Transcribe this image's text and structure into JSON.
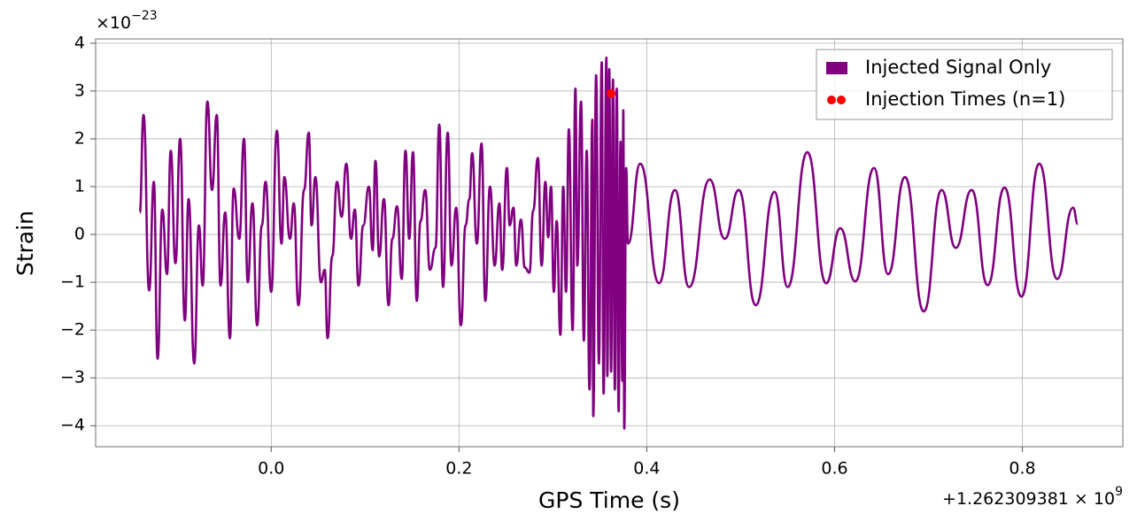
{
  "chart_data": {
    "type": "line",
    "xlabel": "GPS Time (s)",
    "ylabel": "Strain",
    "x_offset": {
      "text": "+1.262309381 × 10",
      "exponent": "9"
    },
    "y_offset": {
      "text": "×10",
      "exponent": "−23"
    },
    "xlim": [
      -0.187,
      0.907
    ],
    "ylim": [
      -4.44,
      4.09
    ],
    "xticks": [
      {
        "value": 0,
        "label": "0.0"
      },
      {
        "value": 0.2,
        "label": "0.2"
      },
      {
        "value": 0.4,
        "label": "0.4"
      },
      {
        "value": 0.6,
        "label": "0.6"
      },
      {
        "value": 0.8,
        "label": "0.8"
      }
    ],
    "yticks": [
      {
        "value": -4,
        "label": "−4"
      },
      {
        "value": -3,
        "label": "−3"
      },
      {
        "value": -2,
        "label": "−2"
      },
      {
        "value": -1,
        "label": "−1"
      },
      0,
      1,
      2,
      3,
      4
    ],
    "grid": true,
    "legend": "upper right",
    "series": [
      {
        "name": "Injected Signal Only",
        "color": "purple",
        "x": [
          -0.14,
          -0.136,
          -0.13,
          -0.125,
          -0.121,
          -0.116,
          -0.111,
          -0.107,
          -0.102,
          -0.097,
          -0.092,
          -0.088,
          -0.082,
          -0.077,
          -0.073,
          -0.068,
          -0.063,
          -0.058,
          -0.054,
          -0.049,
          -0.044,
          -0.04,
          -0.034,
          -0.029,
          -0.025,
          -0.02,
          -0.015,
          -0.01,
          -0.006,
          0.0,
          0.006,
          0.011,
          0.014,
          0.02,
          0.024,
          0.029,
          0.035,
          0.04,
          0.043,
          0.047,
          0.053,
          0.057,
          0.06,
          0.065,
          0.07,
          0.075,
          0.08,
          0.085,
          0.089,
          0.093,
          0.098,
          0.104,
          0.108,
          0.111,
          0.115,
          0.12,
          0.125,
          0.129,
          0.134,
          0.139,
          0.143,
          0.147,
          0.151,
          0.155,
          0.159,
          0.164,
          0.169,
          0.175,
          0.179,
          0.183,
          0.188,
          0.192,
          0.197,
          0.202,
          0.207,
          0.211,
          0.214,
          0.219,
          0.224,
          0.228,
          0.233,
          0.238,
          0.243,
          0.246,
          0.251,
          0.254,
          0.258,
          0.261,
          0.266,
          0.27,
          0.275,
          0.279,
          0.284,
          0.288,
          0.292,
          0.295,
          0.298,
          0.301,
          0.304,
          0.308,
          0.311,
          0.314,
          0.317,
          0.321,
          0.324,
          0.326,
          0.33,
          0.333,
          0.336,
          0.339,
          0.342,
          0.343,
          0.346,
          0.349,
          0.352,
          0.354,
          0.357,
          0.358,
          0.36,
          0.362,
          0.364,
          0.366,
          0.368,
          0.37,
          0.372,
          0.374,
          0.375,
          0.376,
          0.378,
          0.38,
          0.393,
          0.413,
          0.43,
          0.445,
          0.467,
          0.483,
          0.498,
          0.516,
          0.536,
          0.55,
          0.571,
          0.591,
          0.606,
          0.622,
          0.642,
          0.657,
          0.675,
          0.695,
          0.714,
          0.729,
          0.746,
          0.763,
          0.781,
          0.799,
          0.818,
          0.837,
          0.854,
          0.859
        ],
        "values": [
          0.46,
          2.5,
          -1.17,
          1.1,
          -2.6,
          0.52,
          -0.83,
          1.75,
          -0.6,
          2.0,
          -1.8,
          0.74,
          -2.7,
          0.19,
          -1.07,
          2.78,
          0.93,
          2.5,
          -1.07,
          0.46,
          -2.17,
          0.96,
          -0.09,
          2.0,
          -1.0,
          0.65,
          -1.9,
          0.19,
          1.1,
          -1.2,
          2.17,
          -0.19,
          1.2,
          -0.09,
          0.65,
          -1.48,
          0.93,
          2.13,
          0.19,
          1.2,
          -1.0,
          -0.74,
          -2.17,
          -0.46,
          1.1,
          0.37,
          1.48,
          -0.09,
          0.52,
          -1.07,
          0.19,
          1.0,
          -0.33,
          1.54,
          -0.46,
          0.74,
          -1.48,
          -0.09,
          0.59,
          -0.93,
          1.75,
          -0.09,
          1.72,
          -1.39,
          0.28,
          0.93,
          -0.74,
          -0.28,
          2.3,
          -1.1,
          2.13,
          -0.65,
          0.56,
          -1.9,
          0.19,
          0.74,
          1.7,
          -0.19,
          1.9,
          -1.39,
          1.0,
          -0.65,
          0.65,
          -0.74,
          1.39,
          0.19,
          0.56,
          -0.65,
          0.31,
          -0.69,
          -0.8,
          0.5,
          1.6,
          -0.65,
          1.1,
          -0.06,
          1.0,
          -1.2,
          0.28,
          -2.1,
          1.0,
          -1.2,
          2.2,
          -2.0,
          3.05,
          -0.65,
          2.78,
          -2.22,
          1.75,
          -3.24,
          2.4,
          -3.8,
          3.33,
          -2.7,
          3.6,
          -3.33,
          3.7,
          -2.96,
          3.46,
          -2.87,
          3.24,
          -3.24,
          3.05,
          -3.7,
          1.94,
          -3.06,
          2.6,
          -4.06,
          1.39,
          -0.19,
          1.48,
          -1.02,
          0.93,
          -1.1,
          1.15,
          -0.09,
          0.93,
          -1.48,
          0.89,
          -1.1,
          1.72,
          -1.02,
          0.13,
          -0.98,
          1.39,
          -0.83,
          1.2,
          -1.61,
          0.93,
          -0.28,
          0.93,
          -1.06,
          0.98,
          -1.3,
          1.48,
          -0.93,
          0.56,
          0.22
        ]
      },
      {
        "name": "Injection Times (n=1)",
        "color": "red",
        "type": "scatter",
        "x": [
          0.362
        ],
        "values": [
          2.95
        ]
      }
    ]
  }
}
